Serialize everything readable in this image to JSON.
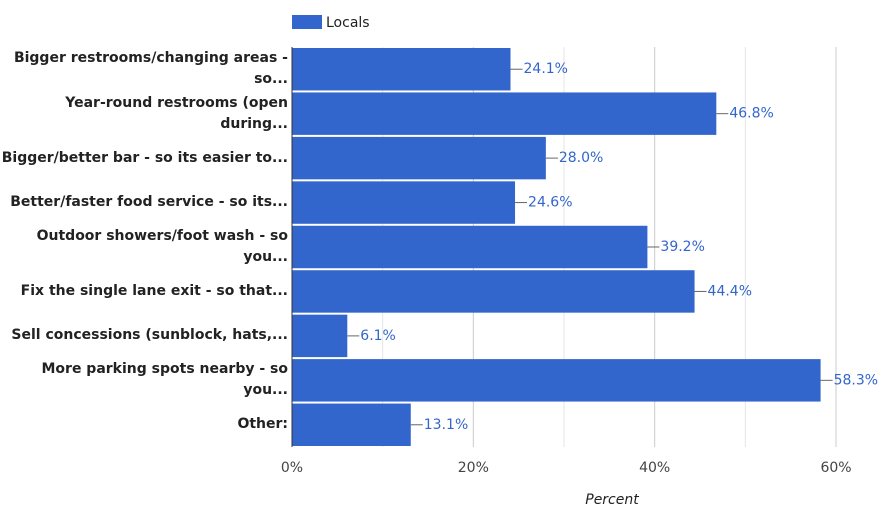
{
  "chart_data": {
    "type": "bar",
    "orientation": "horizontal",
    "categories": [
      "Bigger restrooms/changing areas - so...",
      "Year-round restrooms (open during...",
      "Bigger/better bar - so its easier to...",
      "Better/faster food service - so its...",
      "Outdoor showers/foot wash - so you...",
      "Fix the single lane exit - so that...",
      "Sell concessions (sunblock, hats,...",
      "More parking spots nearby - so you...",
      "Other:"
    ],
    "series": [
      {
        "name": "Locals",
        "color": "#3366cc",
        "values": [
          24.1,
          46.8,
          28.0,
          24.6,
          39.2,
          44.4,
          6.1,
          58.3,
          13.1
        ],
        "value_labels": [
          "24.1%",
          "46.8%",
          "28.0%",
          "24.6%",
          "39.2%",
          "44.4%",
          "6.1%",
          "58.3%",
          "13.1%"
        ]
      }
    ],
    "xlabel": "Percent",
    "xlim": [
      0,
      60
    ],
    "xticks": [
      {
        "value": 0,
        "label": "0%"
      },
      {
        "value": 20,
        "label": "20%"
      },
      {
        "value": 40,
        "label": "40%"
      },
      {
        "value": 60,
        "label": "60%"
      }
    ],
    "xminor": [
      10,
      30,
      50
    ],
    "grid": true,
    "legend": "top"
  }
}
